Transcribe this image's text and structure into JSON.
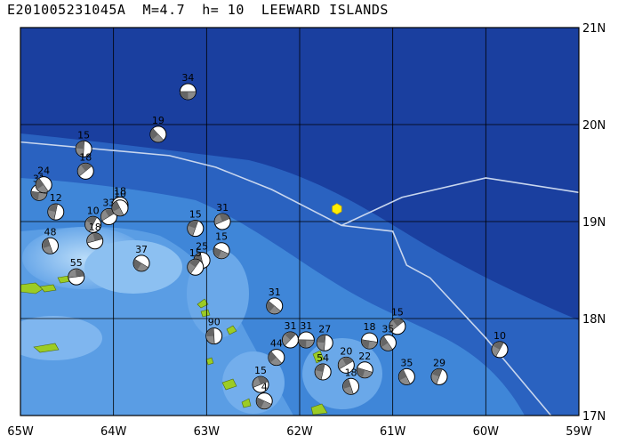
{
  "header": {
    "title": "E201005231045A  M=4.7  h= 10  LEEWARD ISLANDS"
  },
  "map": {
    "lon_range": [
      -65,
      -59
    ],
    "lat_range": [
      17,
      21
    ],
    "lon_labels": [
      "65W",
      "64W",
      "63W",
      "62W",
      "61W",
      "60W",
      "59W"
    ],
    "lat_labels": [
      "21N",
      "20N",
      "19N",
      "18N",
      "17N"
    ],
    "colors": {
      "deep": "#1a3f9f",
      "mid": "#2f6fcc",
      "shallow": "#5ea0e6",
      "shelf": "#a7cff5",
      "land": "#9ccc24",
      "boundary": "#c8d6ee",
      "epicenter": "#ffee00"
    }
  },
  "epicenter": {
    "lon": -61.6,
    "lat": 19.13
  },
  "mechanisms": [
    {
      "depth": "34",
      "lon": -63.2,
      "lat": 20.34
    },
    {
      "depth": "19",
      "lon": -63.52,
      "lat": 19.9
    },
    {
      "depth": "15",
      "lon": -64.32,
      "lat": 19.75
    },
    {
      "depth": "18",
      "lon": -64.3,
      "lat": 19.52
    },
    {
      "depth": "31",
      "lon": -64.8,
      "lat": 19.3
    },
    {
      "depth": "24",
      "lon": -64.75,
      "lat": 19.38
    },
    {
      "depth": "12",
      "lon": -64.62,
      "lat": 19.1
    },
    {
      "depth": "33",
      "lon": -64.05,
      "lat": 19.05
    },
    {
      "depth": "18",
      "lon": -63.93,
      "lat": 19.17
    },
    {
      "depth": "10",
      "lon": -63.93,
      "lat": 19.14
    },
    {
      "depth": "15",
      "lon": -63.12,
      "lat": 18.93
    },
    {
      "depth": "31",
      "lon": -62.83,
      "lat": 19.0
    },
    {
      "depth": "15",
      "lon": -62.84,
      "lat": 18.7
    },
    {
      "depth": "48",
      "lon": -64.68,
      "lat": 18.75
    },
    {
      "depth": "10",
      "lon": -64.22,
      "lat": 18.97
    },
    {
      "depth": "18",
      "lon": -64.2,
      "lat": 18.8
    },
    {
      "depth": "37",
      "lon": -63.7,
      "lat": 18.57
    },
    {
      "depth": "25",
      "lon": -63.05,
      "lat": 18.6
    },
    {
      "depth": "15",
      "lon": -63.12,
      "lat": 18.53
    },
    {
      "depth": "55",
      "lon": -64.4,
      "lat": 18.43
    },
    {
      "depth": "31",
      "lon": -62.27,
      "lat": 18.13
    },
    {
      "depth": "90",
      "lon": -62.92,
      "lat": 17.82
    },
    {
      "depth": "31",
      "lon": -62.1,
      "lat": 17.78
    },
    {
      "depth": "31",
      "lon": -61.93,
      "lat": 17.78
    },
    {
      "depth": "44",
      "lon": -62.25,
      "lat": 17.6
    },
    {
      "depth": "27",
      "lon": -61.73,
      "lat": 17.75
    },
    {
      "depth": "15",
      "lon": -60.95,
      "lat": 17.92
    },
    {
      "depth": "18",
      "lon": -61.25,
      "lat": 17.77
    },
    {
      "depth": "35",
      "lon": -61.05,
      "lat": 17.75
    },
    {
      "depth": "54",
      "lon": -61.75,
      "lat": 17.45
    },
    {
      "depth": "20",
      "lon": -61.5,
      "lat": 17.52
    },
    {
      "depth": "22",
      "lon": -61.3,
      "lat": 17.47
    },
    {
      "depth": "35",
      "lon": -60.85,
      "lat": 17.4
    },
    {
      "depth": "29",
      "lon": -60.5,
      "lat": 17.4
    },
    {
      "depth": "15",
      "lon": -62.42,
      "lat": 17.32
    },
    {
      "depth": "4",
      "lon": -62.38,
      "lat": 17.15
    },
    {
      "depth": "18",
      "lon": -61.45,
      "lat": 17.3
    },
    {
      "depth": "10",
      "lon": -59.85,
      "lat": 17.68
    }
  ]
}
